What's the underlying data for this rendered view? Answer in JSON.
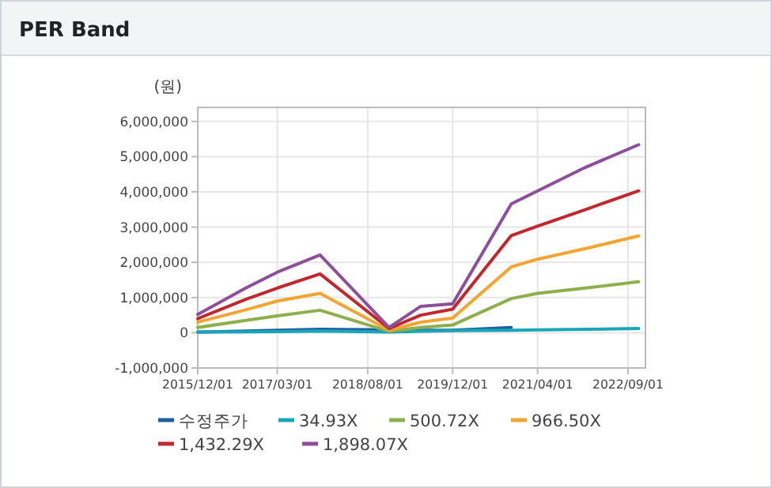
{
  "chart_data": {
    "type": "line",
    "title": "PER Band",
    "ylabel": "(원)",
    "x": [
      "2015-12-01",
      "2016-09-01",
      "2017-03-01",
      "2017-11-01",
      "2018-12-01",
      "2019-06-01",
      "2019-12-01",
      "2020-11-01",
      "2021-04-01",
      "2022-01-01",
      "2022-11-01"
    ],
    "series": [
      {
        "name": "수정주가",
        "color": "#1f5fa0",
        "values": [
          20000,
          50000,
          70000,
          100000,
          80000,
          70000,
          70000,
          150000,
          null,
          null,
          null
        ]
      },
      {
        "name": "34.93X",
        "color": "#1aa5b8",
        "values": [
          20000,
          25000,
          30000,
          50000,
          20000,
          40000,
          60000,
          70000,
          80000,
          100000,
          120000
        ]
      },
      {
        "name": "500.72X",
        "color": "#8db04c",
        "values": [
          150000,
          350000,
          480000,
          640000,
          40000,
          150000,
          220000,
          970000,
          1120000,
          1270000,
          1450000
        ]
      },
      {
        "name": "966.50X",
        "color": "#f3a533",
        "values": [
          300000,
          650000,
          900000,
          1120000,
          70000,
          300000,
          420000,
          1870000,
          2090000,
          2390000,
          2750000
        ]
      },
      {
        "name": "1,432.29X",
        "color": "#c0282e",
        "values": [
          400000,
          950000,
          1270000,
          1670000,
          120000,
          500000,
          670000,
          2760000,
          3030000,
          3500000,
          4030000
        ]
      },
      {
        "name": "1,898.07X",
        "color": "#8e4f9a",
        "values": [
          520000,
          1270000,
          1720000,
          2210000,
          150000,
          750000,
          820000,
          3660000,
          4030000,
          4700000,
          5340000
        ]
      }
    ],
    "xlim": [
      "2015-12-01",
      "2022-12-10"
    ],
    "xticks": [
      {
        "value": "2015-12-01",
        "label": "2015/12/01"
      },
      {
        "value": "2017-03-01",
        "label": "2017/03/01"
      },
      {
        "value": "2018-08-01",
        "label": "2018/08/01"
      },
      {
        "value": "2019-12-01",
        "label": "2019/12/01"
      },
      {
        "value": "2021-04-01",
        "label": "2021/04/01"
      },
      {
        "value": "2022-09-01",
        "label": "2022/09/01"
      }
    ],
    "ylim": [
      -1000000,
      6400000
    ],
    "yticks": [
      {
        "value": -1000000,
        "label": "-1,000,000"
      },
      {
        "value": 0,
        "label": "0"
      },
      {
        "value": 1000000,
        "label": "1,000,000"
      },
      {
        "value": 2000000,
        "label": "2,000,000"
      },
      {
        "value": 3000000,
        "label": "3,000,000"
      },
      {
        "value": 4000000,
        "label": "4,000,000"
      },
      {
        "value": 5000000,
        "label": "5,000,000"
      },
      {
        "value": 6000000,
        "label": "6,000,000"
      }
    ],
    "grid": true,
    "legend": "bottom"
  }
}
